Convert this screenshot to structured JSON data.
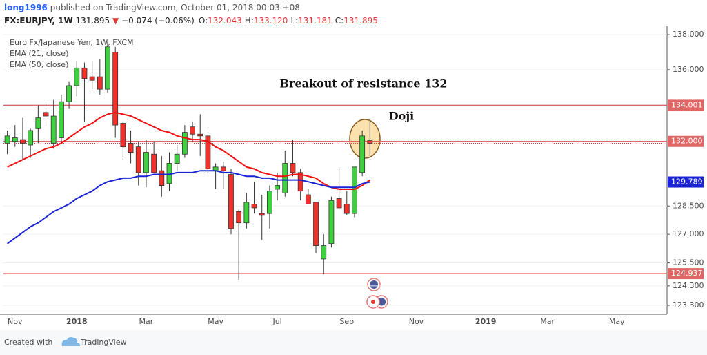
{
  "header": {
    "author": "long1996",
    "published": "published on TradingView.com, October 01, 2018 00:03 +08",
    "symbol": "FX:EURJPY, 1W",
    "last": "131.895",
    "change": "−0.074 (−0.06%)",
    "ohlc": [
      {
        "key": "O:",
        "value": "132.043"
      },
      {
        "key": "H:",
        "value": "133.120"
      },
      {
        "key": "L:",
        "value": "131.181"
      },
      {
        "key": "C:",
        "value": "131.895"
      }
    ]
  },
  "chart_data": {
    "type": "candlestick",
    "title": "Euro Fx/Japanese Yen, 1W, FXCM",
    "log": true,
    "grid": true,
    "up_color": "#3fd03f",
    "down_color": "#f0302a",
    "ylim": [
      122.84,
      138.4
    ],
    "yticks": [
      {
        "value": 138,
        "label": "138.000"
      },
      {
        "value": 136,
        "label": "136.000"
      },
      {
        "value": 128.5,
        "label": "128.500"
      },
      {
        "value": 127,
        "label": "127.000"
      },
      {
        "value": 125.5,
        "label": "125.500"
      },
      {
        "value": 124.3,
        "label": "124.300"
      },
      {
        "value": 123.3,
        "label": "123.300"
      }
    ],
    "levels": [
      {
        "value": 134.001,
        "label": "134.001"
      },
      {
        "value": 132.0,
        "label": "132.000"
      },
      {
        "value": 124.937,
        "label": "124.937"
      }
    ],
    "level_color": "#e06666",
    "annotations": [
      "Breakout of resistance 132",
      "Doji"
    ],
    "categories": [
      null,
      "Nov",
      null,
      null,
      null,
      null,
      null,
      null,
      null,
      "2018",
      null,
      null,
      null,
      null,
      null,
      null,
      null,
      null,
      "Mar",
      null,
      null,
      null,
      null,
      null,
      null,
      null,
      null,
      "May",
      null,
      null,
      null,
      null,
      null,
      null,
      null,
      "Jul",
      null,
      null,
      null,
      null,
      null,
      null,
      null,
      null,
      "Sep",
      null,
      null,
      null,
      null,
      null,
      null,
      null,
      null,
      "Nov",
      null,
      null,
      null,
      null,
      null,
      null,
      null,
      null,
      "2019",
      null,
      null,
      null,
      null,
      null,
      null,
      null,
      "Mar",
      null,
      null,
      null,
      null,
      null,
      null,
      null,
      null,
      "May",
      null,
      null,
      null,
      null,
      null,
      null
    ],
    "open": [
      131.9,
      132.0,
      132.1,
      131.8,
      132.7,
      133.6,
      131.9,
      132.2,
      134.2,
      135.1,
      136.1,
      135.6,
      135.6,
      134.9,
      137.0,
      133.0,
      131.9,
      131.7,
      130.3,
      131.3,
      130.4,
      129.7,
      130.8,
      131.3,
      132.8,
      132.4,
      132.3,
      130.4,
      130.6,
      130.2,
      128.2,
      127.6,
      128.6,
      128.1,
      128.1,
      129.4,
      129.2,
      130.8,
      130.3,
      129.1,
      128.7,
      125.7,
      126.5,
      128.9,
      128.6,
      128.1,
      130.3,
      132.043,
      null,
      null,
      null,
      null,
      null,
      null,
      null,
      null,
      null,
      null,
      null,
      null,
      null,
      null,
      null,
      null,
      null,
      null,
      null,
      null,
      null,
      null,
      null,
      null,
      null,
      null,
      null,
      null,
      null,
      null,
      null,
      null,
      null,
      null,
      null,
      null,
      null,
      null
    ],
    "high": [
      132.6,
      132.9,
      133.3,
      132.7,
      134.0,
      134.2,
      134.3,
      134.6,
      135.3,
      136.5,
      136.4,
      136.5,
      136.6,
      137.6,
      137.3,
      133.1,
      132.6,
      132.0,
      132.1,
      132.0,
      131.2,
      131.4,
      131.8,
      132.9,
      133.1,
      133.5,
      132.5,
      130.8,
      130.9,
      130.5,
      128.3,
      129.2,
      129.8,
      129.1,
      129.6,
      130.3,
      131.5,
      132.1,
      130.5,
      129.4,
      128.7,
      127.0,
      129.0,
      130.6,
      129.3,
      130.6,
      132.6,
      133.12,
      null,
      null,
      null,
      null,
      null,
      null,
      null,
      null,
      null,
      null,
      null,
      null,
      null,
      null,
      null,
      null,
      null,
      null,
      null,
      null,
      null,
      null,
      null,
      null,
      null,
      null,
      null,
      null,
      null,
      null,
      null,
      null,
      null,
      null,
      null,
      null,
      null,
      null
    ],
    "low": [
      131.3,
      131.7,
      131.0,
      131.1,
      131.9,
      132.8,
      131.6,
      131.9,
      133.8,
      134.5,
      133.1,
      134.9,
      134.6,
      134.7,
      132.2,
      131.0,
      130.8,
      129.6,
      129.5,
      130.3,
      129.0,
      129.3,
      130.4,
      131.1,
      132.0,
      131.2,
      130.3,
      129.4,
      129.4,
      127.0,
      124.6,
      127.3,
      128.1,
      126.7,
      127.3,
      128.8,
      129.0,
      130.1,
      128.8,
      128.6,
      126.0,
      124.9,
      126.3,
      128.4,
      128.0,
      127.9,
      130.1,
      131.181,
      null,
      null,
      null,
      null,
      null,
      null,
      null,
      null,
      null,
      null,
      null,
      null,
      null,
      null,
      null,
      null,
      null,
      null,
      null,
      null,
      null,
      null,
      null,
      null,
      null,
      null,
      null,
      null,
      null,
      null,
      null,
      null,
      null,
      null,
      null,
      null,
      null,
      null
    ],
    "close": [
      132.3,
      132.2,
      131.9,
      132.6,
      133.3,
      133.4,
      133.4,
      134.2,
      135.1,
      136.1,
      135.5,
      135.4,
      134.9,
      137.3,
      132.9,
      131.7,
      131.4,
      130.3,
      131.4,
      130.3,
      129.6,
      130.8,
      131.3,
      132.5,
      132.4,
      132.3,
      130.5,
      130.6,
      130.4,
      127.3,
      127.6,
      128.7,
      128.4,
      128.0,
      129.3,
      129.6,
      130.8,
      130.3,
      129.3,
      128.6,
      126.4,
      126.4,
      128.8,
      128.4,
      128.1,
      130.6,
      132.3,
      131.895,
      null,
      null,
      null,
      null,
      null,
      null,
      null,
      null,
      null,
      null,
      null,
      null,
      null,
      null,
      null,
      null,
      null,
      null,
      null,
      null,
      null,
      null,
      null,
      null,
      null,
      null,
      null,
      null,
      null,
      null,
      null,
      null,
      null,
      null,
      null,
      null,
      null,
      null
    ],
    "series": [
      {
        "name": "EMA (21, close)",
        "color": "#f01010",
        "values": [
          130.6,
          130.8,
          131.0,
          131.2,
          131.4,
          131.6,
          131.7,
          131.9,
          132.2,
          132.5,
          132.8,
          133.0,
          133.3,
          133.5,
          133.6,
          133.5,
          133.4,
          133.2,
          133.0,
          132.8,
          132.6,
          132.5,
          132.3,
          132.2,
          132.1,
          132.1,
          132.0,
          131.7,
          131.5,
          131.2,
          130.9,
          130.6,
          130.5,
          130.3,
          130.2,
          130.1,
          130.1,
          130.2,
          130.2,
          130.1,
          130.0,
          129.7,
          129.5,
          129.4,
          129.4,
          129.4,
          129.6,
          129.9,
          null,
          null,
          null,
          null,
          null,
          null,
          null,
          null,
          null,
          null,
          null,
          null,
          null,
          null,
          null,
          null,
          null,
          null,
          null,
          null,
          null,
          null,
          null,
          null,
          null,
          null,
          null,
          null,
          null,
          null,
          null,
          null,
          null,
          null,
          null,
          null,
          null,
          null
        ]
      },
      {
        "name": "EMA (50, close)",
        "color": "#1a23d6",
        "last_label": "129.789",
        "values": [
          126.5,
          126.8,
          127.1,
          127.4,
          127.6,
          127.9,
          128.2,
          128.4,
          128.6,
          128.9,
          129.1,
          129.3,
          129.6,
          129.8,
          129.9,
          130.0,
          130.0,
          130.1,
          130.1,
          130.2,
          130.2,
          130.2,
          130.3,
          130.3,
          130.3,
          130.4,
          130.4,
          130.4,
          130.3,
          130.3,
          130.2,
          130.1,
          130.1,
          130.0,
          130.0,
          129.9,
          129.9,
          129.9,
          129.9,
          129.8,
          129.7,
          129.6,
          129.5,
          129.5,
          129.5,
          129.5,
          129.7,
          129.789,
          null,
          null,
          null,
          null,
          null,
          null,
          null,
          null,
          null,
          null,
          null,
          null,
          null,
          null,
          null,
          null,
          null,
          null,
          null,
          null,
          null,
          null,
          null,
          null,
          null,
          null,
          null,
          null,
          null,
          null,
          null,
          null,
          null,
          null,
          null,
          null,
          null,
          null
        ]
      }
    ]
  },
  "footer": {
    "text": "Created with",
    "brand": "TradingView"
  }
}
